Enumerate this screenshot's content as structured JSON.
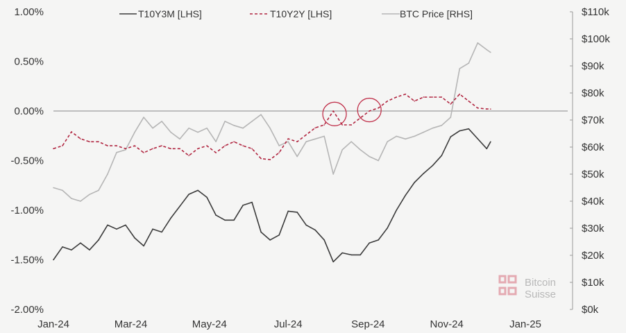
{
  "chart_data": {
    "type": "line",
    "title": "",
    "x_unit": "days since 2024-01-01",
    "x_ticks": [
      {
        "day": 0,
        "label": "Jan-24"
      },
      {
        "day": 60,
        "label": "Mar-24"
      },
      {
        "day": 121,
        "label": "May-24"
      },
      {
        "day": 182,
        "label": "Jul-24"
      },
      {
        "day": 244,
        "label": "Sep-24"
      },
      {
        "day": 305,
        "label": "Nov-24"
      },
      {
        "day": 366,
        "label": "Jan-25"
      }
    ],
    "xlim": [
      0,
      400
    ],
    "y_left": {
      "ylim": [
        -2.0,
        1.0
      ],
      "ticks": [
        "1.00%",
        "0.50%",
        "0.00%",
        "-0.50%",
        "-1.00%",
        "-1.50%",
        "-2.00%"
      ],
      "tick_values": [
        1,
        0.5,
        0,
        -0.5,
        -1,
        -1.5,
        -2
      ]
    },
    "y_right": {
      "ylim": [
        0,
        110
      ],
      "ticks": [
        "$110k",
        "$100k",
        "$90k",
        "$80k",
        "$70k",
        "$60k",
        "$50k",
        "$40k",
        "$30k",
        "$20k",
        "$10k",
        "$0k"
      ],
      "tick_values": [
        110,
        100,
        90,
        80,
        70,
        60,
        50,
        40,
        30,
        20,
        10,
        0
      ]
    },
    "x": [
      0,
      7,
      14,
      21,
      28,
      35,
      42,
      49,
      56,
      63,
      70,
      77,
      84,
      91,
      98,
      105,
      112,
      119,
      126,
      133,
      140,
      147,
      154,
      161,
      168,
      175,
      182,
      189,
      196,
      203,
      210,
      217,
      224,
      231,
      238,
      245,
      252,
      259,
      266,
      273,
      280,
      287,
      294,
      301,
      308,
      315,
      322,
      329,
      336,
      339
    ],
    "series": [
      {
        "name": "T10Y3M [LHS]",
        "axis": "left",
        "color": "#3a3a3a",
        "dash": false,
        "values": [
          -1.5,
          -1.37,
          -1.4,
          -1.33,
          -1.4,
          -1.3,
          -1.15,
          -1.19,
          -1.15,
          -1.28,
          -1.36,
          -1.19,
          -1.22,
          -1.08,
          -0.96,
          -0.84,
          -0.8,
          -0.87,
          -1.05,
          -1.1,
          -1.1,
          -0.95,
          -0.92,
          -1.22,
          -1.3,
          -1.25,
          -1.01,
          -1.02,
          -1.15,
          -1.2,
          -1.3,
          -1.52,
          -1.43,
          -1.45,
          -1.45,
          -1.33,
          -1.3,
          -1.18,
          -1.0,
          -0.85,
          -0.72,
          -0.63,
          -0.55,
          -0.45,
          -0.26,
          -0.2,
          -0.18,
          -0.28,
          -0.38,
          -0.31
        ]
      },
      {
        "name": "T10Y2Y [LHS]",
        "axis": "left",
        "color": "#b0243f",
        "dash": true,
        "values": [
          -0.38,
          -0.35,
          -0.21,
          -0.28,
          -0.31,
          -0.31,
          -0.35,
          -0.35,
          -0.38,
          -0.35,
          -0.42,
          -0.38,
          -0.35,
          -0.38,
          -0.38,
          -0.45,
          -0.38,
          -0.35,
          -0.42,
          -0.35,
          -0.31,
          -0.35,
          -0.38,
          -0.48,
          -0.49,
          -0.42,
          -0.28,
          -0.31,
          -0.24,
          -0.17,
          -0.14,
          0.0,
          -0.14,
          -0.14,
          -0.07,
          0.0,
          0.03,
          0.1,
          0.14,
          0.17,
          0.1,
          0.14,
          0.14,
          0.14,
          0.07,
          0.17,
          0.1,
          0.03,
          0.02,
          0.02
        ]
      },
      {
        "name": "BTC Price [RHS]",
        "axis": "right",
        "color": "#b5b5b5",
        "dash": false,
        "values": [
          45,
          44,
          41,
          40,
          42.5,
          44,
          50,
          58,
          59,
          65.5,
          71,
          67,
          69.5,
          65.5,
          63,
          67,
          65.5,
          67,
          62,
          69.5,
          68,
          67,
          69.5,
          72,
          67,
          60.5,
          62,
          56.5,
          62,
          63,
          64,
          50,
          59,
          62,
          59,
          56.5,
          55,
          62,
          64,
          63,
          64,
          65.5,
          67,
          68,
          71,
          89,
          91,
          98.5,
          96,
          95
        ]
      }
    ],
    "annotations": [
      {
        "type": "circle",
        "day": 218,
        "value": -0.03,
        "color": "#c0304a"
      },
      {
        "type": "circle",
        "day": 245,
        "value": 0.01,
        "color": "#c0304a"
      }
    ],
    "legend": "top"
  },
  "logo": {
    "line1": "Bitcoin",
    "line2": "Suisse"
  }
}
